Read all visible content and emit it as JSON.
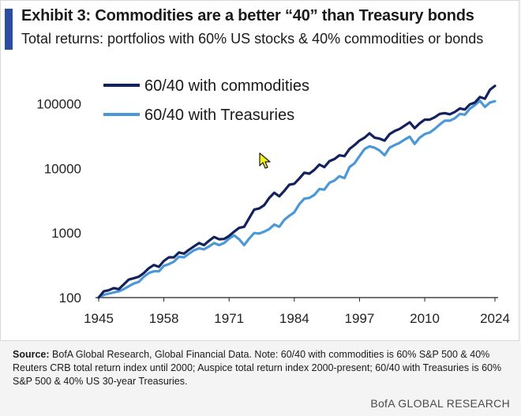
{
  "header": {
    "title": "Exhibit 3: Commodities are a better “40” than Treasury bonds",
    "subtitle": "Total returns: portfolios with 60% US stocks & 40% commodities or bonds"
  },
  "source": {
    "label": "Source:",
    "text": "BofA Global Research, Global Financial Data. Note: 60/40 with commodities is 60% S&P 500 & 40% Reuters CRB total return index until 2000; Auspice total return index 2000-present; 60/40 with Treasuries is 60% S&P 500 & 40% US 30-year Treasuries."
  },
  "footer": {
    "brand": "BofA GLOBAL RESEARCH"
  },
  "colors": {
    "commodities": "#13215c",
    "treasuries": "#4a98d8",
    "accent": "#2b4ea2"
  },
  "chart_data": {
    "type": "line",
    "yscale": "log",
    "xlim": [
      1945,
      2024
    ],
    "ylim": [
      100,
      200000
    ],
    "x_ticks": [
      1945,
      1958,
      1971,
      1984,
      1997,
      2010,
      2024
    ],
    "y_ticks": [
      100,
      1000,
      10000,
      100000
    ],
    "y_tick_labels": [
      "100",
      "1000",
      "10000",
      "100000"
    ],
    "legend_position": "top-left",
    "series": [
      {
        "name": "60/40 with commodities",
        "x": [
          1945,
          1946,
          1947,
          1948,
          1949,
          1950,
          1951,
          1952,
          1953,
          1954,
          1955,
          1956,
          1957,
          1958,
          1959,
          1960,
          1961,
          1962,
          1963,
          1964,
          1965,
          1966,
          1967,
          1968,
          1969,
          1970,
          1971,
          1972,
          1973,
          1974,
          1975,
          1976,
          1977,
          1978,
          1979,
          1980,
          1981,
          1982,
          1983,
          1984,
          1985,
          1986,
          1987,
          1988,
          1989,
          1990,
          1991,
          1992,
          1993,
          1994,
          1995,
          1996,
          1997,
          1998,
          1999,
          2000,
          2001,
          2002,
          2003,
          2004,
          2005,
          2006,
          2007,
          2008,
          2009,
          2010,
          2011,
          2012,
          2013,
          2014,
          2015,
          2016,
          2017,
          2018,
          2019,
          2020,
          2021,
          2022,
          2023,
          2024
        ],
        "values": [
          100,
          125,
          130,
          140,
          135,
          160,
          190,
          200,
          210,
          240,
          285,
          320,
          300,
          370,
          420,
          420,
          500,
          480,
          550,
          620,
          700,
          650,
          760,
          870,
          800,
          810,
          900,
          1050,
          1200,
          1250,
          1700,
          2300,
          2400,
          2700,
          3500,
          4200,
          3700,
          4500,
          5600,
          5800,
          7000,
          8600,
          8300,
          9500,
          11500,
          10500,
          13000,
          14000,
          16000,
          15500,
          20000,
          23000,
          27000,
          30000,
          35000,
          30000,
          29000,
          27000,
          34000,
          38000,
          41000,
          46000,
          52000,
          42000,
          50000,
          57000,
          57000,
          62000,
          70000,
          72000,
          69000,
          75000,
          85000,
          82000,
          98000,
          105000,
          128000,
          120000,
          165000,
          190000
        ]
      },
      {
        "name": "60/40 with Treasuries",
        "x": [
          1945,
          1946,
          1947,
          1948,
          1949,
          1950,
          1951,
          1952,
          1953,
          1954,
          1955,
          1956,
          1957,
          1958,
          1959,
          1960,
          1961,
          1962,
          1963,
          1964,
          1965,
          1966,
          1967,
          1968,
          1969,
          1970,
          1971,
          1972,
          1973,
          1974,
          1975,
          1976,
          1977,
          1978,
          1979,
          1980,
          1981,
          1982,
          1983,
          1984,
          1985,
          1986,
          1987,
          1988,
          1989,
          1990,
          1991,
          1992,
          1993,
          1994,
          1995,
          1996,
          1997,
          1998,
          1999,
          2000,
          2001,
          2002,
          2003,
          2004,
          2005,
          2006,
          2007,
          2008,
          2009,
          2010,
          2011,
          2012,
          2013,
          2014,
          2015,
          2016,
          2017,
          2018,
          2019,
          2020,
          2021,
          2022,
          2023,
          2024
        ],
        "values": [
          100,
          110,
          115,
          120,
          125,
          135,
          150,
          165,
          175,
          210,
          240,
          255,
          255,
          310,
          330,
          360,
          430,
          420,
          480,
          540,
          580,
          560,
          620,
          700,
          650,
          700,
          820,
          920,
          800,
          650,
          820,
          1000,
          980,
          1050,
          1150,
          1350,
          1250,
          1600,
          1850,
          2100,
          2800,
          3400,
          3500,
          3900,
          4800,
          4700,
          6000,
          6500,
          7600,
          7100,
          10500,
          12000,
          15500,
          20000,
          22000,
          21000,
          19000,
          16000,
          21000,
          23000,
          25000,
          28000,
          31000,
          24000,
          30000,
          34000,
          36000,
          41000,
          48000,
          55000,
          55000,
          60000,
          70000,
          68000,
          84000,
          96000,
          112000,
          90000,
          105000,
          110000
        ]
      }
    ]
  }
}
